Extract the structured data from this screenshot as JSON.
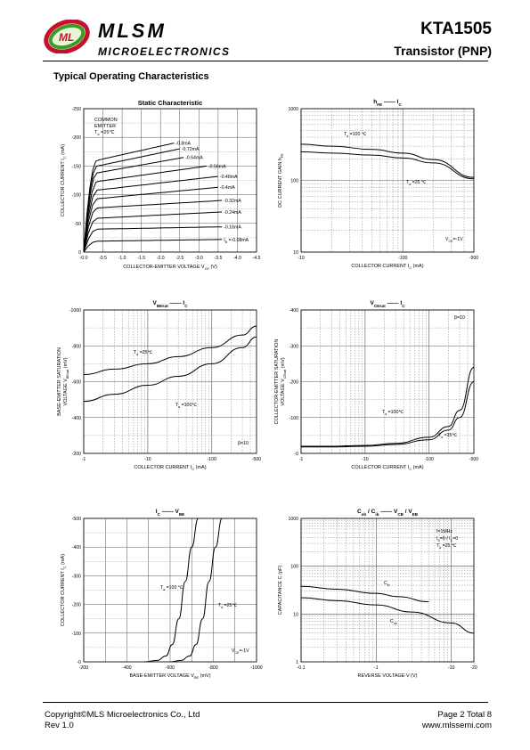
{
  "header": {
    "brand": "MLSM",
    "brand_sub": "MICROELECTRONICS",
    "part_number": "KTA1505",
    "part_type": "Transistor  (PNP)",
    "logo_text": "ML"
  },
  "section_title": "Typical Operating Characteristics",
  "footer": {
    "copyright": "Copyright©MLS Microelectronics Co., Ltd",
    "rev": "Rev 1.0",
    "page": "Page 2 Total 8",
    "url": "www.mlssemi.com"
  },
  "chart_data": [
    {
      "id": "static",
      "type": "line",
      "title": "Static Characteristic",
      "xlabel": "COLLECTOR-EMITTER VOLTAGE   V",
      "xlabel_sub": "CE",
      "xlabel_unit": "(V)",
      "ylabel": "COLLECTOR CURRENT   I",
      "ylabel_sub": "C",
      "ylabel_unit": "(mA)",
      "xlim": [
        0,
        -4.5
      ],
      "ylim": [
        0,
        -250
      ],
      "xticks": [
        "-0.0",
        "-0.5",
        "-1.0",
        "-1.5",
        "-2.0",
        "-2.5",
        "-3.0",
        "-3.5",
        "-4.0",
        "-4.5"
      ],
      "yticks": [
        "0",
        "-50",
        "-100",
        "-150",
        "-200",
        "-250"
      ],
      "annotation": [
        "COMMON",
        "EMITTER",
        "T =25℃"
      ],
      "series": [
        {
          "name": "-0.8mA",
          "ib": -0.8,
          "end_x": -2.35,
          "sat_y": -160,
          "end_y": -190
        },
        {
          "name": "-0.72mA",
          "ib": -0.72,
          "end_x": -2.5,
          "sat_y": -150,
          "end_y": -180
        },
        {
          "name": "-0.64mA",
          "ib": -0.64,
          "end_x": -2.6,
          "sat_y": -138,
          "end_y": -165
        },
        {
          "name": "-0.56mA",
          "ib": -0.56,
          "end_x": -3.2,
          "sat_y": -123,
          "end_y": -150
        },
        {
          "name": "-0.48mA",
          "ib": -0.48,
          "end_x": -3.5,
          "sat_y": -108,
          "end_y": -132
        },
        {
          "name": "-0.4mA",
          "ib": -0.4,
          "end_x": -3.5,
          "sat_y": -93,
          "end_y": -113
        },
        {
          "name": "-0.32mA",
          "ib": -0.32,
          "end_x": -3.6,
          "sat_y": -77,
          "end_y": -90
        },
        {
          "name": "-0.24mA",
          "ib": -0.24,
          "end_x": -3.6,
          "sat_y": -59,
          "end_y": -70
        },
        {
          "name": "-0.16mA",
          "ib": -0.16,
          "end_x": -3.6,
          "sat_y": -40,
          "end_y": -44
        },
        {
          "name": "I =-0.08mA",
          "ib": -0.08,
          "end_x": -3.6,
          "sat_y": -19,
          "end_y": -22
        }
      ]
    },
    {
      "id": "hfe",
      "type": "line",
      "title": "h",
      "title_sub": "FE",
      "title_dash": "——",
      "title_right": "I",
      "title_right_sub": "C",
      "xlabel": "COLLECTOR CURRENT   I",
      "xlabel_sub": "C",
      "xlabel_unit": "(mA)",
      "ylabel": "DC CURRENT GAIN   h",
      "ylabel_sub": "FE",
      "xscale": "log",
      "yscale": "log",
      "xlim": [
        -10,
        -500
      ],
      "ylim": [
        10,
        1000
      ],
      "xticks": [
        "-10",
        "-100",
        "-500"
      ],
      "yticks": [
        "1000",
        "100",
        "10"
      ],
      "annotations": [
        "T =100 ℃",
        "T =25 ℃",
        "V  =-1V"
      ],
      "series": [
        {
          "name": "T=100℃",
          "x": [
            -10,
            -20,
            -50,
            -100,
            -200,
            -500
          ],
          "y": [
            320,
            300,
            270,
            240,
            195,
            110
          ]
        },
        {
          "name": "T=25℃",
          "x": [
            -10,
            -20,
            -50,
            -100,
            -200,
            -500
          ],
          "y": [
            250,
            240,
            225,
            205,
            175,
            105
          ]
        }
      ]
    },
    {
      "id": "vbesat",
      "type": "line",
      "title": "V",
      "title_sub": "BEsat",
      "title_dash": "——",
      "title_right": "I",
      "title_right_sub": "C",
      "xlabel": "COLLECTOR CURRENT   I",
      "xlabel_sub": "C",
      "xlabel_unit": "(mA)",
      "ylabel": "BASE-EMITTER SATURATION",
      "ylabel2": "VOLTAGE    V",
      "ylabel2_sub": "BEsat",
      "ylabel_unit": "(mV)",
      "xscale": "log",
      "xlim": [
        -1,
        -500
      ],
      "ylim": [
        -200,
        -1000
      ],
      "xticks": [
        "-1",
        "-10",
        "-100",
        "-500"
      ],
      "yticks": [
        "-1000",
        "-800",
        "-600",
        "-400",
        "-200"
      ],
      "annotations": [
        "T =25℃",
        "T =100℃",
        "β=10"
      ],
      "series": [
        {
          "name": "T=25℃",
          "x": [
            -1,
            -3,
            -10,
            -30,
            -100,
            -300,
            -500
          ],
          "y": [
            -640,
            -670,
            -700,
            -740,
            -790,
            -860,
            -910
          ]
        },
        {
          "name": "T=100℃",
          "x": [
            -1,
            -3,
            -10,
            -30,
            -100,
            -300,
            -500
          ],
          "y": [
            -490,
            -530,
            -580,
            -630,
            -700,
            -790,
            -850
          ]
        }
      ]
    },
    {
      "id": "vcesat",
      "type": "line",
      "title": "V",
      "title_sub": "CEsat",
      "title_dash": "——",
      "title_right": "I",
      "title_right_sub": "C",
      "xlabel": "COLLECTOR CURRENT   I",
      "xlabel_sub": "C",
      "xlabel_unit": "(mA)",
      "ylabel": "COLLECTOR-EMITTER SATURATION",
      "ylabel2": "VOLTAGE    V",
      "ylabel2_sub": "CEsat",
      "ylabel_unit": "(mV)",
      "xscale": "log",
      "xlim": [
        -1,
        -500
      ],
      "ylim": [
        0,
        -400
      ],
      "xticks": [
        "-1",
        "-10",
        "-100",
        "-500"
      ],
      "yticks": [
        "-400",
        "-300",
        "-200",
        "-100",
        "-0"
      ],
      "annotations": [
        "β=10",
        "T =100℃",
        "T =25℃"
      ],
      "series": [
        {
          "name": "T=100℃",
          "x": [
            -1,
            -3,
            -10,
            -30,
            -100,
            -200,
            -300,
            -500
          ],
          "y": [
            -20,
            -20,
            -22,
            -28,
            -45,
            -75,
            -120,
            -240
          ]
        },
        {
          "name": "T=25℃",
          "x": [
            -1,
            -3,
            -10,
            -30,
            -100,
            -200,
            -300,
            -500
          ],
          "y": [
            -18,
            -18,
            -20,
            -25,
            -38,
            -65,
            -100,
            -200
          ]
        }
      ]
    },
    {
      "id": "icvbe",
      "type": "line",
      "title": "I",
      "title_sub": "C",
      "title_dash": "——",
      "title_right": "V",
      "title_right_sub": "BE",
      "xlabel": "BASE-EMITTER VOLTAGE   V",
      "xlabel_sub": "BE",
      "xlabel_unit": "(mV)",
      "ylabel": "COLLECTOR CURRENT   I",
      "ylabel_sub": "C",
      "ylabel_unit": "(mA)",
      "xlim": [
        -200,
        -1000
      ],
      "ylim": [
        0,
        -500
      ],
      "xticks": [
        "-200",
        "-400",
        "-600",
        "-800",
        "-1000"
      ],
      "yticks": [
        "-500",
        "-400",
        "-300",
        "-200",
        "-100",
        "-0"
      ],
      "annotations": [
        "T =100 ℃",
        "T =25℃",
        "V  =-1V"
      ],
      "series": [
        {
          "name": "T=100℃",
          "x": [
            -480,
            -540,
            -580,
            -610,
            -640,
            -670,
            -700,
            -730
          ],
          "y": [
            0,
            -5,
            -20,
            -60,
            -150,
            -280,
            -400,
            -500
          ]
        },
        {
          "name": "T=25℃",
          "x": [
            -600,
            -650,
            -690,
            -720,
            -750,
            -780,
            -810,
            -840
          ],
          "y": [
            0,
            -5,
            -20,
            -60,
            -150,
            -280,
            -400,
            -500
          ]
        }
      ]
    },
    {
      "id": "cap",
      "type": "line",
      "title": "C",
      "title_sub": "ob",
      "title_mid": " / C",
      "title_mid_sub": "ib",
      "title_dash": "——",
      "title_right": "V",
      "title_right_sub": "CB",
      "title_right2": " / V",
      "title_right2_sub": "EB",
      "xlabel": "REVERSE  VOLTAGE   V   (V)",
      "ylabel": "CAPACITANCE   C   (pF)",
      "xscale": "log",
      "yscale": "log",
      "xlim": [
        -0.1,
        -20
      ],
      "ylim": [
        1,
        1000
      ],
      "xticks": [
        "-0.1",
        "-1",
        "-10",
        "-20"
      ],
      "yticks": [
        "1000",
        "100",
        "10",
        "1"
      ],
      "annotations": [
        "f=1MHz",
        "I =0 / I =0",
        "T =25 ℃",
        "C",
        "C"
      ],
      "series": [
        {
          "name": "Cib",
          "x": [
            -0.1,
            -0.3,
            -1,
            -2,
            -5
          ],
          "y": [
            38,
            33,
            27,
            23,
            18
          ]
        },
        {
          "name": "Cob",
          "x": [
            -0.1,
            -0.3,
            -1,
            -3,
            -10,
            -20
          ],
          "y": [
            22,
            19,
            15.5,
            11,
            6.5,
            4
          ]
        }
      ]
    }
  ]
}
